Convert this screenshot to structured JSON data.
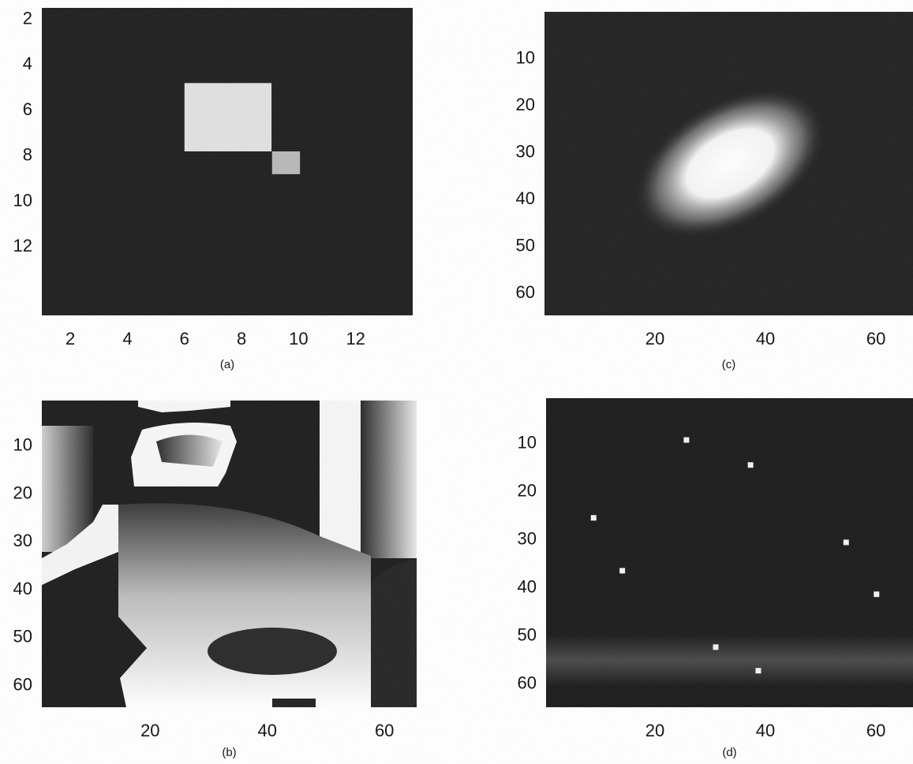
{
  "chart_data": [
    {
      "type": "image",
      "caption": "(a)",
      "xlim": [
        1,
        14
      ],
      "ylim": [
        1.5,
        15
      ],
      "yreverse": true,
      "xticks": [
        2,
        4,
        6,
        8,
        10,
        12
      ],
      "yticks": [
        2,
        4,
        6,
        8,
        10,
        12
      ],
      "rects": [
        {
          "x": [
            6,
            9.05
          ],
          "y": [
            4.8,
            7.8
          ],
          "level": 0.88
        },
        {
          "x": [
            9.07,
            10.05
          ],
          "y": [
            7.8,
            8.8
          ],
          "level": 0.72
        }
      ]
    },
    {
      "type": "image",
      "caption": "(b)",
      "xlim": [
        1.5,
        65.5
      ],
      "ylim": [
        0.5,
        64.5
      ],
      "yreverse": true,
      "xticks": [
        20,
        40,
        60
      ],
      "yticks": [
        10,
        20,
        30,
        40,
        50,
        60
      ]
    },
    {
      "type": "blob",
      "caption": "(c)",
      "xlim": [
        0,
        66.7
      ],
      "ylim": [
        0,
        64.7
      ],
      "yreverse": true,
      "xticks": [
        20,
        40,
        60
      ],
      "yticks": [
        10,
        20,
        30,
        40,
        50,
        60
      ],
      "blob": {
        "center": [
          33.6,
          32.3
        ],
        "radius": [
          10,
          7
        ],
        "angle": -30
      }
    },
    {
      "type": "scatter",
      "caption": "(d)",
      "xlim": [
        0.3,
        66.7
      ],
      "ylim": [
        0.5,
        64.8
      ],
      "yreverse": true,
      "xticks": [
        20,
        40,
        60
      ],
      "yticks": [
        10,
        20,
        30,
        40,
        50,
        60
      ],
      "x": [
        25.7,
        37.3,
        8.9,
        14.1,
        54.6,
        60.1,
        31,
        38.7
      ],
      "y": [
        9.2,
        14.4,
        25.4,
        36.4,
        30.5,
        41.3,
        52.3,
        57.2
      ]
    }
  ]
}
